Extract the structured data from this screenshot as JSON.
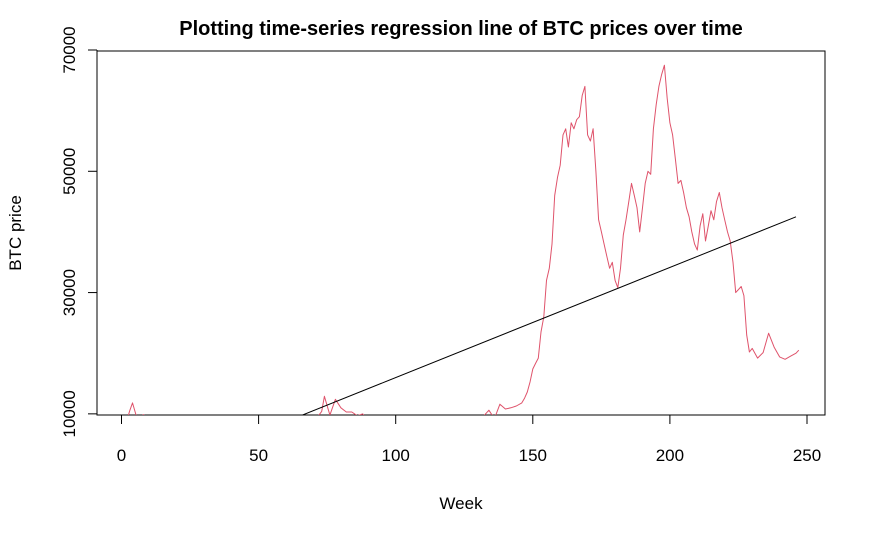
{
  "chart_data": {
    "type": "line",
    "title": "Plotting time-series regression line of BTC prices over time",
    "xlabel": "Week",
    "ylabel": "BTC price",
    "xlim": [
      0,
      250
    ],
    "ylim": [
      0,
      70000
    ],
    "x_ticks": [
      0,
      50,
      100,
      150,
      200,
      250
    ],
    "y_ticks": [
      10000,
      30000,
      50000,
      70000
    ],
    "grid": false,
    "legend": "none",
    "series": [
      {
        "kind": "price",
        "color": "#DF536B",
        "x": [
          2,
          3,
          4,
          6,
          8,
          10,
          12,
          14,
          16,
          18,
          20,
          22,
          24,
          26,
          28,
          30,
          32,
          34,
          36,
          38,
          40,
          42,
          44,
          46,
          48,
          50,
          52,
          54,
          56,
          58,
          60,
          62,
          64,
          66,
          68,
          70,
          72,
          73,
          74,
          76,
          78,
          80,
          82,
          84,
          86,
          88,
          90,
          92,
          94,
          96,
          98,
          100,
          102,
          104,
          106,
          108,
          110,
          112,
          114,
          116,
          118,
          120,
          122,
          124,
          126,
          128,
          130,
          132,
          134,
          136,
          138,
          140,
          142,
          144,
          146,
          147,
          148,
          149,
          150,
          151,
          152,
          153,
          154,
          155,
          156,
          157,
          158,
          159,
          160,
          161,
          162,
          163,
          164,
          165,
          166,
          167,
          168,
          169,
          170,
          171,
          172,
          173,
          174,
          175,
          176,
          177,
          178,
          179,
          180,
          181,
          182,
          183,
          184,
          185,
          186,
          187,
          188,
          189,
          190,
          191,
          192,
          193,
          194,
          195,
          196,
          197,
          198,
          199,
          200,
          201,
          202,
          203,
          204,
          205,
          206,
          207,
          208,
          209,
          210,
          211,
          212,
          213,
          214,
          215,
          216,
          217,
          218,
          219,
          220,
          221,
          222,
          223,
          224,
          225,
          226,
          227,
          228,
          229,
          230,
          232,
          234,
          236,
          238,
          240,
          242,
          244,
          246,
          247
        ],
        "y": [
          9000,
          10500,
          11800,
          8700,
          9900,
          8800,
          8000,
          7400,
          7000,
          7800,
          7000,
          6700,
          6800,
          6800,
          6900,
          6600,
          6500,
          6500,
          6600,
          6400,
          6300,
          6200,
          4100,
          3900,
          3800,
          3700,
          3900,
          3700,
          3800,
          3900,
          4100,
          4800,
          5200,
          5300,
          6800,
          8500,
          9800,
          10400,
          12900,
          9800,
          12400,
          11000,
          10300,
          10300,
          9700,
          10000,
          8700,
          8400,
          8300,
          7900,
          7500,
          7500,
          7300,
          8600,
          9600,
          8600,
          6800,
          4900,
          6500,
          7000,
          6800,
          8800,
          9400,
          9300,
          9600,
          9700,
          9300,
          9600,
          10600,
          9200,
          11600,
          10800,
          11000,
          11300,
          11800,
          12600,
          13600,
          15300,
          17400,
          18300,
          19200,
          23500,
          26000,
          32000,
          34000,
          38000,
          46000,
          49000,
          51000,
          56000,
          57000,
          54000,
          58000,
          57000,
          58500,
          59000,
          62500,
          64000,
          56000,
          55000,
          57000,
          50000,
          42000,
          40000,
          38000,
          36000,
          34000,
          35000,
          32000,
          30800,
          34000,
          39500,
          42000,
          45000,
          48000,
          46000,
          44000,
          40000,
          44000,
          48000,
          50000,
          49500,
          57000,
          61000,
          64000,
          66000,
          67500,
          62000,
          58000,
          56000,
          52000,
          48000,
          48500,
          46500,
          44000,
          42500,
          40000,
          38000,
          37000,
          41000,
          43000,
          38500,
          41000,
          43500,
          42000,
          45000,
          46500,
          44000,
          42000,
          40000,
          38500,
          35000,
          30000,
          30500,
          31000,
          29500,
          23000,
          20200,
          20800,
          19200,
          20100,
          23300,
          21000,
          19400,
          19000,
          19500,
          20000,
          20500
        ]
      },
      {
        "kind": "regression",
        "color": "#000000",
        "x": [
          12,
          246
        ],
        "y": [
          0,
          42500
        ]
      }
    ]
  }
}
